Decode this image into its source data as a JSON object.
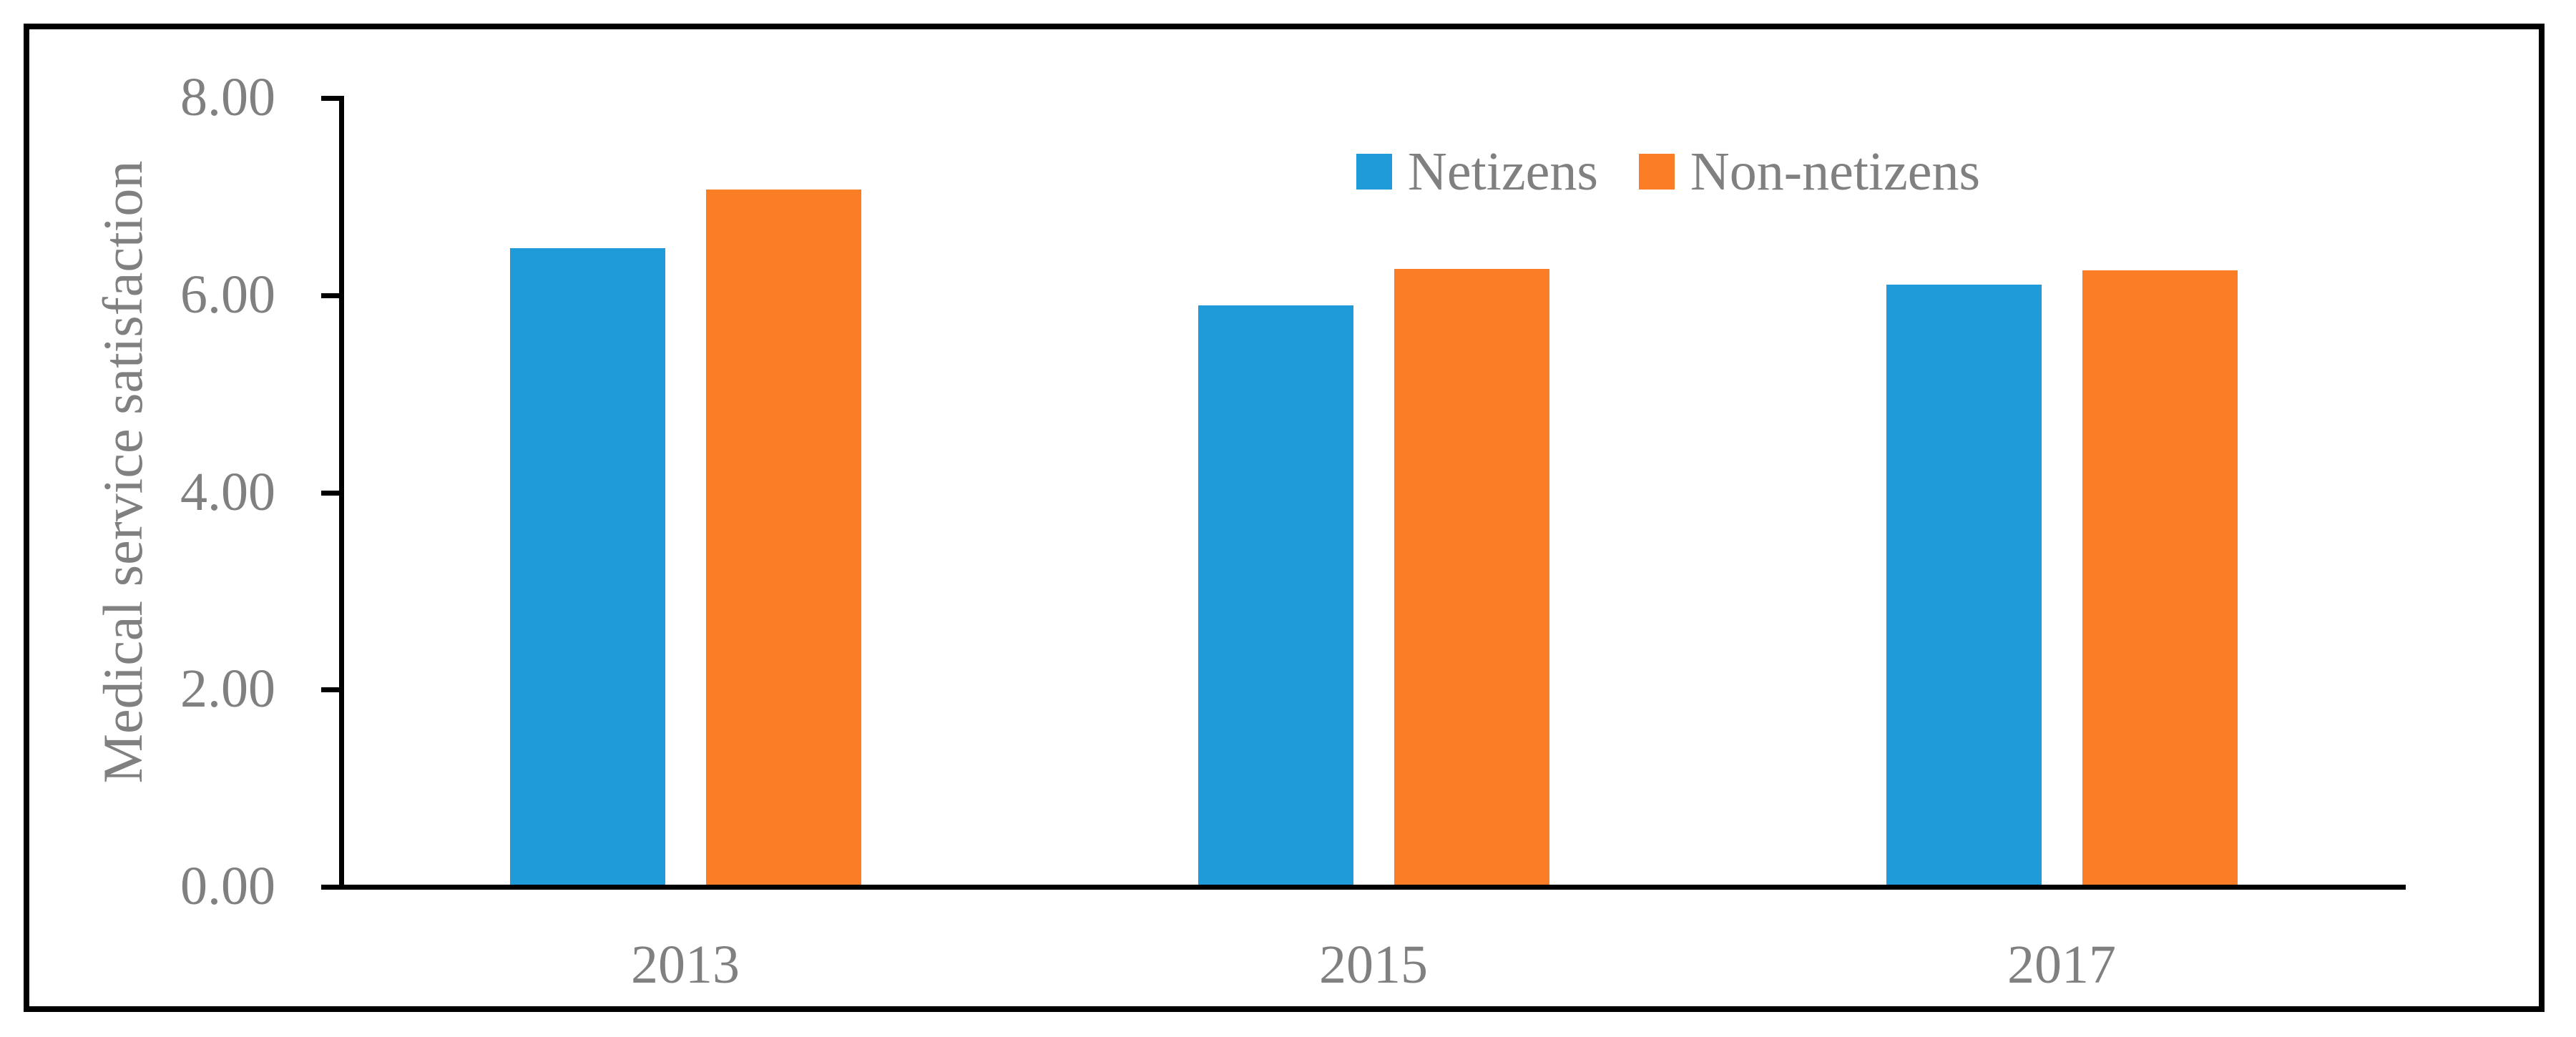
{
  "figure": {
    "background": "#ffffff",
    "frame_color": "#000000",
    "text_color": "#808080",
    "axis_color": "#000000"
  },
  "chart_data": {
    "type": "bar",
    "title": "",
    "xlabel": "",
    "ylabel": "Medical service satisfaction",
    "categories": [
      "2013",
      "2015",
      "2017"
    ],
    "series": [
      {
        "name": "Netizens",
        "color": "#1E9BD8",
        "values": [
          6.48,
          5.9,
          6.11
        ]
      },
      {
        "name": "Non-netizens",
        "color": "#FB7D26",
        "values": [
          7.07,
          6.27,
          6.25
        ]
      }
    ],
    "ylim": [
      0,
      8
    ],
    "ytick_values": [
      8,
      6,
      4,
      2,
      0
    ],
    "ytick_labels": [
      "8.00",
      "6.00",
      "4.00",
      "2.00",
      "0.00"
    ],
    "grid": false,
    "legend_position": "inside-top-right"
  }
}
